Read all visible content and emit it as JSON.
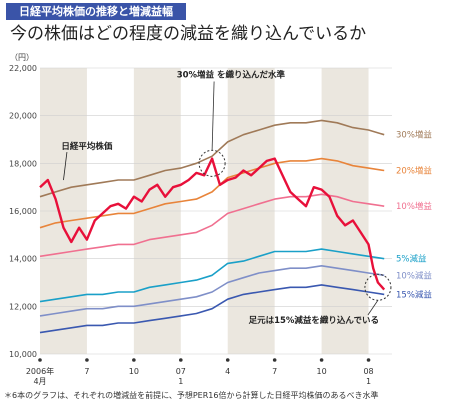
{
  "header": {
    "tag": "日経平均株価の推移と増減益幅",
    "headline": "今の株価はどの程度の減益を織り込んでいるか"
  },
  "footnote": "＊6本のグラフは、それぞれの増減益を前提に、予想PER16倍から計算した日経平均株価のあるべき水準",
  "chart_data": {
    "type": "line",
    "unit_label": "（円）",
    "ylim": [
      10000,
      22000
    ],
    "y_ticks": [
      10000,
      12000,
      14000,
      16000,
      18000,
      20000,
      22000
    ],
    "y_tick_labels": [
      "10,000",
      "12,000",
      "14,000",
      "16,000",
      "18,000",
      "20,000",
      "22,000"
    ],
    "x_ticks": [
      {
        "label": "2006年",
        "label2": "4月",
        "t": 0
      },
      {
        "label": "7",
        "label2": "",
        "t": 3
      },
      {
        "label": "10",
        "label2": "",
        "t": 6
      },
      {
        "label": "07",
        "label2": "1",
        "t": 9
      },
      {
        "label": "4",
        "label2": "",
        "t": 12
      },
      {
        "label": "7",
        "label2": "",
        "t": 15
      },
      {
        "label": "10",
        "label2": "",
        "t": 18
      },
      {
        "label": "08",
        "label2": "1",
        "t": 21
      }
    ],
    "xlim": [
      0,
      22.5
    ],
    "shaded_bands": [
      [
        0,
        3
      ],
      [
        6,
        9
      ],
      [
        12,
        15
      ],
      [
        18,
        21
      ]
    ],
    "grid": true,
    "series": [
      {
        "name": "日経平均株価",
        "color": "#e8103a",
        "line_width": 2.4,
        "x": [
          0,
          0.5,
          1,
          1.5,
          2,
          2.5,
          3,
          3.5,
          4,
          4.5,
          5,
          5.5,
          6,
          6.5,
          7,
          7.5,
          8,
          8.5,
          9,
          9.5,
          10,
          10.5,
          11,
          11.5,
          12,
          12.5,
          13,
          13.5,
          14,
          14.5,
          15,
          15.5,
          16,
          16.5,
          17,
          17.5,
          18,
          18.5,
          19,
          19.5,
          20,
          20.5,
          21,
          21.3,
          21.6,
          22
        ],
        "values": [
          17000,
          17300,
          16500,
          15300,
          14700,
          15300,
          14800,
          15600,
          15900,
          16200,
          16300,
          16100,
          16600,
          16400,
          16900,
          17100,
          16600,
          17000,
          17100,
          17300,
          17600,
          17500,
          18200,
          17100,
          17300,
          17400,
          17700,
          17500,
          17800,
          18100,
          18200,
          17500,
          16800,
          16500,
          16200,
          17000,
          16900,
          16600,
          15800,
          15400,
          15600,
          15100,
          14600,
          13600,
          13000,
          12700
        ]
      },
      {
        "name": "30%増益",
        "color": "#a07a58",
        "line_width": 1.6,
        "x": [
          0,
          1,
          2,
          3,
          4,
          5,
          6,
          7,
          8,
          9,
          10,
          11,
          12,
          13,
          14,
          15,
          16,
          17,
          18,
          19,
          20,
          21,
          22
        ],
        "values": [
          16600,
          16800,
          17000,
          17100,
          17200,
          17300,
          17300,
          17500,
          17700,
          17800,
          18000,
          18300,
          18900,
          19200,
          19400,
          19600,
          19700,
          19700,
          19800,
          19700,
          19500,
          19400,
          19200
        ]
      },
      {
        "name": "20%増益",
        "color": "#e8843a",
        "line_width": 1.6,
        "x": [
          0,
          1,
          2,
          3,
          4,
          5,
          6,
          7,
          8,
          9,
          10,
          11,
          12,
          13,
          14,
          15,
          16,
          17,
          18,
          19,
          20,
          21,
          22
        ],
        "values": [
          15300,
          15500,
          15600,
          15700,
          15800,
          15900,
          15900,
          16100,
          16300,
          16400,
          16500,
          16800,
          17400,
          17600,
          17800,
          18000,
          18100,
          18100,
          18200,
          18100,
          17900,
          17800,
          17700
        ]
      },
      {
        "name": "10%増益",
        "color": "#f07090",
        "line_width": 1.6,
        "x": [
          0,
          1,
          2,
          3,
          4,
          5,
          6,
          7,
          8,
          9,
          10,
          11,
          12,
          13,
          14,
          15,
          16,
          17,
          18,
          19,
          20,
          21,
          22
        ],
        "values": [
          14100,
          14200,
          14300,
          14400,
          14500,
          14600,
          14600,
          14800,
          14900,
          15000,
          15100,
          15400,
          15900,
          16100,
          16300,
          16500,
          16600,
          16600,
          16700,
          16600,
          16400,
          16300,
          16200
        ]
      },
      {
        "name": "5%減益",
        "color": "#1aa0c8",
        "line_width": 1.6,
        "x": [
          0,
          1,
          2,
          3,
          4,
          5,
          6,
          7,
          8,
          9,
          10,
          11,
          12,
          13,
          14,
          15,
          16,
          17,
          18,
          19,
          20,
          21,
          22
        ],
        "values": [
          12200,
          12300,
          12400,
          12500,
          12500,
          12600,
          12600,
          12800,
          12900,
          13000,
          13100,
          13300,
          13800,
          13900,
          14100,
          14300,
          14300,
          14300,
          14400,
          14300,
          14200,
          14100,
          14000
        ]
      },
      {
        "name": "10%減益",
        "color": "#7f8fc8",
        "line_width": 1.6,
        "x": [
          0,
          1,
          2,
          3,
          4,
          5,
          6,
          7,
          8,
          9,
          10,
          11,
          12,
          13,
          14,
          15,
          16,
          17,
          18,
          19,
          20,
          21,
          22
        ],
        "values": [
          11600,
          11700,
          11800,
          11900,
          11900,
          12000,
          12000,
          12100,
          12200,
          12300,
          12400,
          12600,
          13000,
          13200,
          13400,
          13500,
          13600,
          13600,
          13700,
          13600,
          13500,
          13400,
          13300
        ]
      },
      {
        "name": "15%減益",
        "color": "#3a58b0",
        "line_width": 1.6,
        "x": [
          0,
          1,
          2,
          3,
          4,
          5,
          6,
          7,
          8,
          9,
          10,
          11,
          12,
          13,
          14,
          15,
          16,
          17,
          18,
          19,
          20,
          21,
          22
        ],
        "values": [
          10900,
          11000,
          11100,
          11200,
          11200,
          11300,
          11300,
          11400,
          11500,
          11600,
          11700,
          11900,
          12300,
          12500,
          12600,
          12700,
          12800,
          12800,
          12900,
          12800,
          12700,
          12600,
          12500
        ]
      }
    ],
    "annotations": [
      {
        "text": "30%増益 を織り込んだ水準",
        "circle_x": 11,
        "circle_y": 18000,
        "label_t": 12.2,
        "label_v": 21600
      },
      {
        "text": "足元は15%減益を織り込んでいる",
        "circle_x": 21.6,
        "circle_y": 12800,
        "label_t": 17.5,
        "label_v": 11300
      }
    ],
    "stock_label": {
      "text": "日経平均株価",
      "t": 3,
      "v": 18600,
      "point_t": 1.5,
      "point_v": 17300
    }
  }
}
